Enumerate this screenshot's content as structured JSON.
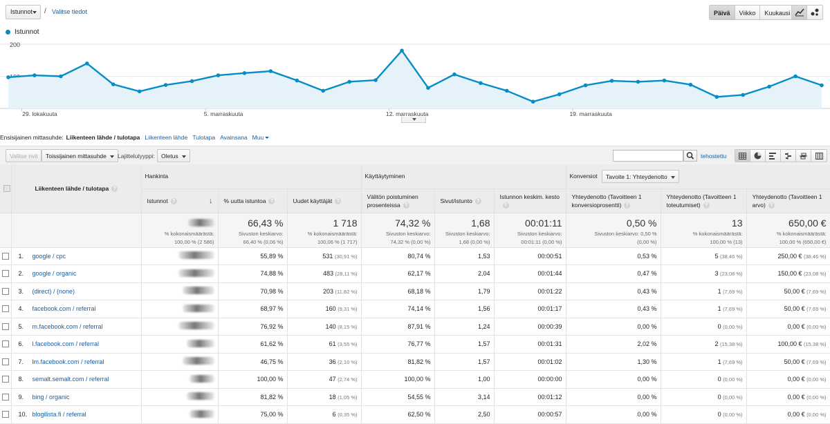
{
  "topbar": {
    "metric": "Istunnot",
    "separator": "/",
    "select_metric_link": "Valitse tiedot",
    "periods": [
      "Päivä",
      "Viikko",
      "Kuukausi"
    ],
    "active_period": "Päivä"
  },
  "colors": {
    "accent": "#058dc7",
    "link": "#1a5fa2",
    "area_fill": "#e5f2fa"
  },
  "chart_data": {
    "type": "area",
    "series": [
      {
        "name": "Istunnot",
        "values": [
          97,
          103,
          100,
          140,
          75,
          53,
          73,
          85,
          103,
          110,
          116,
          87,
          55,
          83,
          88,
          180,
          64,
          106,
          79,
          55,
          21,
          44,
          72,
          86,
          83,
          87,
          74,
          36,
          42,
          68,
          100,
          72
        ]
      }
    ],
    "ylim": [
      0,
      200
    ],
    "y_ticks": [
      100,
      200
    ],
    "x_tick_labels": [
      {
        "index": 1.2,
        "label": "29. lokakuuta"
      },
      {
        "index": 8.2,
        "label": "5. marraskuuta"
      },
      {
        "index": 15.2,
        "label": "12. marraskuuta"
      },
      {
        "index": 22.2,
        "label": "19. marraskuuta"
      }
    ]
  },
  "dimensions": {
    "label": "Ensisijainen mittasuhde:",
    "current": "Liikenteen lähde / tulotapa",
    "links": [
      "Liikenteen lähde",
      "Tulotapa",
      "Avainsana"
    ],
    "more": "Muu"
  },
  "toolbar": {
    "plot_rows": "Valitse rivit",
    "secondary_dimension": "Toissijainen mittasuhde",
    "sort_type_label": "Lajittelutyyppi:",
    "sort_type_value": "Oletus",
    "search_placeholder": "",
    "advanced": "tehostettu"
  },
  "table": {
    "groups": {
      "acquisition": "Hankinta",
      "behavior": "Käyttäytyminen",
      "conversions": "Konversiot",
      "goal_select": "Tavoite 1: Yhteydenotto"
    },
    "dimension_header": "Liikenteen lähde / tulotapa",
    "columns": [
      "Istunnot",
      "% uutta istuntoa",
      "Uudet käyttäjät",
      "Välitön poistuminen prosenteissa",
      "Sivut/istunto",
      "Istunnon keskim. kesto",
      "Yhteydenotto (Tavoitteen 1 konversioprosentti)",
      "Yhteydenotto (Tavoitteen 1 toteutumiset)",
      "Yhteydenotto (Tavoitteen 1 arvo)"
    ],
    "totals": [
      {
        "big": "",
        "small1": "% kokonaismäärästä:",
        "small2": "100,00 % (2 586)"
      },
      {
        "big": "66,43 %",
        "small1": "Sivuston keskiarvo:",
        "small2": "66,40 % (0,06 %)"
      },
      {
        "big": "1 718",
        "small1": "% kokonaismäärästä:",
        "small2": "100,06 % (1 717)"
      },
      {
        "big": "74,32 %",
        "small1": "Sivuston keskiarvo:",
        "small2": "74,32 % (0,00 %)"
      },
      {
        "big": "1,68",
        "small1": "Sivuston keskiarvo:",
        "small2": "1,68 (0,00 %)"
      },
      {
        "big": "00:01:11",
        "small1": "Sivuston keskiarvo:",
        "small2": "00:01:11 (0,00 %)"
      },
      {
        "big": "0,50 %",
        "small1": "Sivuston keskiarvo: 0,50 %",
        "small2": "(0,00 %)"
      },
      {
        "big": "13",
        "small1": "% kokonaismäärästä:",
        "small2": "100,00 % (13)"
      },
      {
        "big": "650,00 €",
        "small1": "% kokonaismäärästä:",
        "small2": "100,00 % (650,00 €)"
      }
    ],
    "rows": [
      {
        "n": "1.",
        "source": "google / cpc",
        "new_pct": "55,89 %",
        "new_users": "531",
        "new_users_pct": "(30,91 %)",
        "bounce": "80,74 %",
        "pages": "1,53",
        "duration": "00:00:51",
        "conv_rate": "0,53 %",
        "completions": "5",
        "completions_pct": "(38,46 %)",
        "value": "250,00 €",
        "value_pct": "(38,46 %)"
      },
      {
        "n": "2.",
        "source": "google / organic",
        "new_pct": "74,88 %",
        "new_users": "483",
        "new_users_pct": "(28,11 %)",
        "bounce": "62,17 %",
        "pages": "2,04",
        "duration": "00:01:44",
        "conv_rate": "0,47 %",
        "completions": "3",
        "completions_pct": "(23,08 %)",
        "value": "150,00 €",
        "value_pct": "(23,08 %)"
      },
      {
        "n": "3.",
        "source": "(direct) / (none)",
        "new_pct": "70,98 %",
        "new_users": "203",
        "new_users_pct": "(11,82 %)",
        "bounce": "68,18 %",
        "pages": "1,79",
        "duration": "00:01:22",
        "conv_rate": "0,43 %",
        "completions": "1",
        "completions_pct": "(7,69 %)",
        "value": "50,00 €",
        "value_pct": "(7,69 %)"
      },
      {
        "n": "4.",
        "source": "facebook.com / referral",
        "new_pct": "68,97 %",
        "new_users": "160",
        "new_users_pct": "(9,31 %)",
        "bounce": "74,14 %",
        "pages": "1,56",
        "duration": "00:01:17",
        "conv_rate": "0,43 %",
        "completions": "1",
        "completions_pct": "(7,69 %)",
        "value": "50,00 €",
        "value_pct": "(7,69 %)"
      },
      {
        "n": "5.",
        "source": "m.facebook.com / referral",
        "new_pct": "76,92 %",
        "new_users": "140",
        "new_users_pct": "(8,15 %)",
        "bounce": "87,91 %",
        "pages": "1,24",
        "duration": "00:00:39",
        "conv_rate": "0,00 %",
        "completions": "0",
        "completions_pct": "(0,00 %)",
        "value": "0,00 €",
        "value_pct": "(0,00 %)"
      },
      {
        "n": "6.",
        "source": "l.facebook.com / referral",
        "new_pct": "61,62 %",
        "new_users": "61",
        "new_users_pct": "(3,55 %)",
        "bounce": "76,77 %",
        "pages": "1,57",
        "duration": "00:01:31",
        "conv_rate": "2,02 %",
        "completions": "2",
        "completions_pct": "(15,38 %)",
        "value": "100,00 €",
        "value_pct": "(15,38 %)"
      },
      {
        "n": "7.",
        "source": "lm.facebook.com / referral",
        "new_pct": "46,75 %",
        "new_users": "36",
        "new_users_pct": "(2,10 %)",
        "bounce": "81,82 %",
        "pages": "1,57",
        "duration": "00:01:02",
        "conv_rate": "1,30 %",
        "completions": "1",
        "completions_pct": "(7,69 %)",
        "value": "50,00 €",
        "value_pct": "(7,69 %)"
      },
      {
        "n": "8.",
        "source": "semalt.semalt.com / referral",
        "new_pct": "100,00 %",
        "new_users": "47",
        "new_users_pct": "(2,74 %)",
        "bounce": "100,00 %",
        "pages": "1,00",
        "duration": "00:00:00",
        "conv_rate": "0,00 %",
        "completions": "0",
        "completions_pct": "(0,00 %)",
        "value": "0,00 €",
        "value_pct": "(0,00 %)"
      },
      {
        "n": "9.",
        "source": "bing / organic",
        "new_pct": "81,82 %",
        "new_users": "18",
        "new_users_pct": "(1,05 %)",
        "bounce": "54,55 %",
        "pages": "3,14",
        "duration": "00:01:12",
        "conv_rate": "0,00 %",
        "completions": "0",
        "completions_pct": "(0,00 %)",
        "value": "0,00 €",
        "value_pct": "(0,00 %)"
      },
      {
        "n": "10.",
        "source": "blogilista.fi / referral",
        "new_pct": "75,00 %",
        "new_users": "6",
        "new_users_pct": "(0,35 %)",
        "bounce": "62,50 %",
        "pages": "2,50",
        "duration": "00:00:57",
        "conv_rate": "0,00 %",
        "completions": "0",
        "completions_pct": "(0,00 %)",
        "value": "0,00 €",
        "value_pct": "(0,00 %)"
      }
    ]
  }
}
